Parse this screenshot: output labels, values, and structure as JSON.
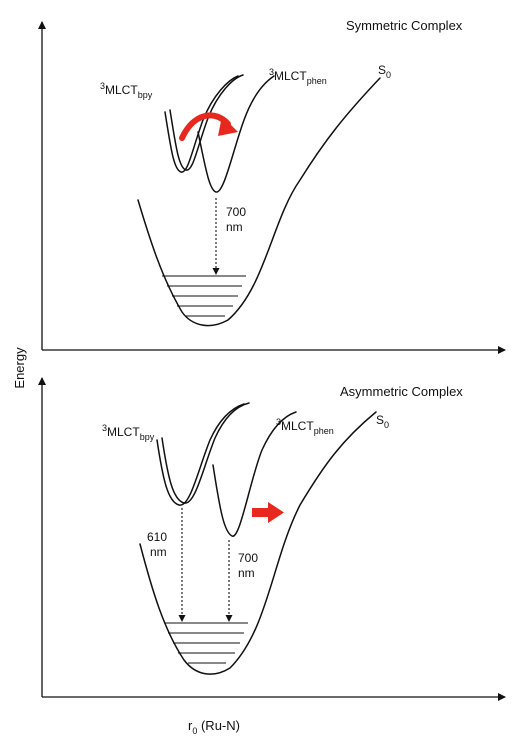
{
  "energy_label": "Energy",
  "x_axis_label": {
    "main": "r",
    "sub": "0",
    "rest": " (Ru-N)"
  },
  "colors": {
    "line": "#111111",
    "arrow": "#e8281e"
  },
  "panels": [
    {
      "title": "Symmetric Complex",
      "state_bpy": {
        "main": "MLCT",
        "sup": "3",
        "sub": "bpy"
      },
      "state_phen": {
        "main": "MLCT",
        "sup": "3",
        "sub": "phen"
      },
      "ground": {
        "main": "S",
        "sub": "0"
      },
      "transitions": [
        {
          "value": "700",
          "unit": "nm"
        }
      ]
    },
    {
      "title": "Asymmetric Complex",
      "state_bpy": {
        "main": "MLCT",
        "sup": "3",
        "sub": "bpy"
      },
      "state_phen": {
        "main": "MLCT",
        "sup": "3",
        "sub": "phen"
      },
      "ground": {
        "main": "S",
        "sub": "0"
      },
      "transitions": [
        {
          "value": "610",
          "unit": "nm"
        },
        {
          "value": "700",
          "unit": "nm"
        }
      ]
    }
  ]
}
